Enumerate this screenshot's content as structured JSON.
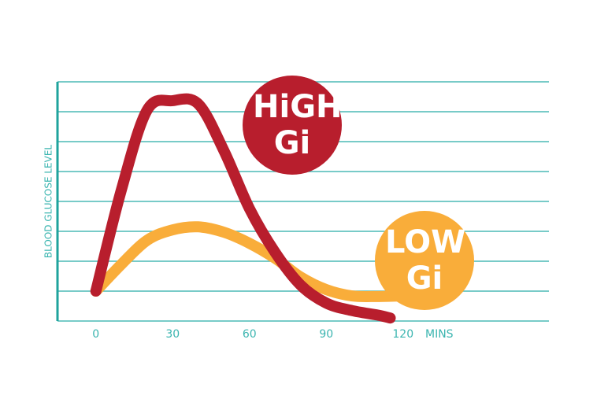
{
  "chart_data": {
    "type": "line",
    "y_label": "BLOOD GLUCOSE LEVEL",
    "x_label": "MINS",
    "xlim": [
      -15,
      177
    ],
    "xticks": [
      0,
      30,
      60,
      90,
      120
    ],
    "ylim": [
      0,
      8
    ],
    "yticks": [
      0,
      1,
      2,
      3,
      4,
      5,
      6,
      7,
      8
    ],
    "grid": true,
    "grid_color": "#4cbab5",
    "series": [
      {
        "name": "HiGH Gi",
        "color": "#b81e2d",
        "x": [
          0,
          10,
          20,
          30,
          40,
          50,
          60,
          70,
          80,
          90,
          100,
          110,
          115
        ],
        "values": [
          1,
          4.4,
          7.05,
          7.37,
          7.26,
          5.7,
          3.76,
          2.3,
          1.2,
          0.6,
          0.35,
          0.2,
          0.1
        ]
      },
      {
        "name": "LOW Gi",
        "color": "#f9ad3a",
        "x": [
          0,
          10,
          20,
          30,
          40,
          50,
          60,
          70,
          80,
          90,
          100,
          110,
          120
        ],
        "values": [
          1,
          1.9,
          2.7,
          3.05,
          3.15,
          2.97,
          2.6,
          2.1,
          1.47,
          1.05,
          0.84,
          0.82,
          0.84
        ]
      }
    ]
  }
}
